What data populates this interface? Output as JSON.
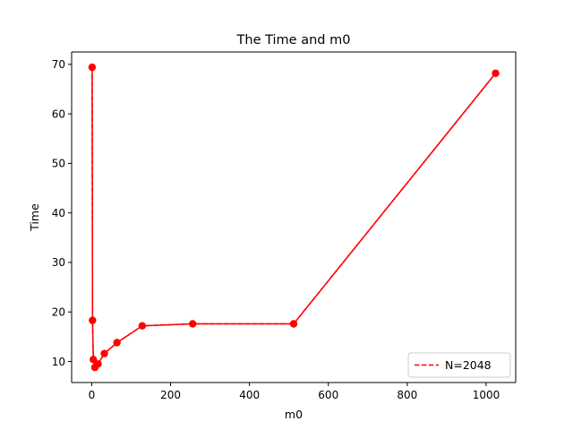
{
  "chart_data": {
    "type": "line",
    "title": "The Time and m0",
    "xlabel": "m0",
    "ylabel": "Time",
    "xlim": [
      -51,
      1075
    ],
    "ylim": [
      5.75,
      72.5
    ],
    "xticks": [
      0,
      200,
      400,
      600,
      800,
      1000
    ],
    "yticks": [
      10,
      20,
      30,
      40,
      50,
      60,
      70
    ],
    "grid": false,
    "legend_position": "lower right",
    "series": [
      {
        "name": "N=2048",
        "color": "#ff0000",
        "line_style": "dashed",
        "marker": "circle",
        "x": [
          1,
          2,
          4,
          8,
          16,
          32,
          64,
          128,
          256,
          512,
          1024
        ],
        "y": [
          69.4,
          18.3,
          10.4,
          8.8,
          9.5,
          11.6,
          13.8,
          17.2,
          17.6,
          17.6,
          68.2
        ]
      }
    ]
  }
}
